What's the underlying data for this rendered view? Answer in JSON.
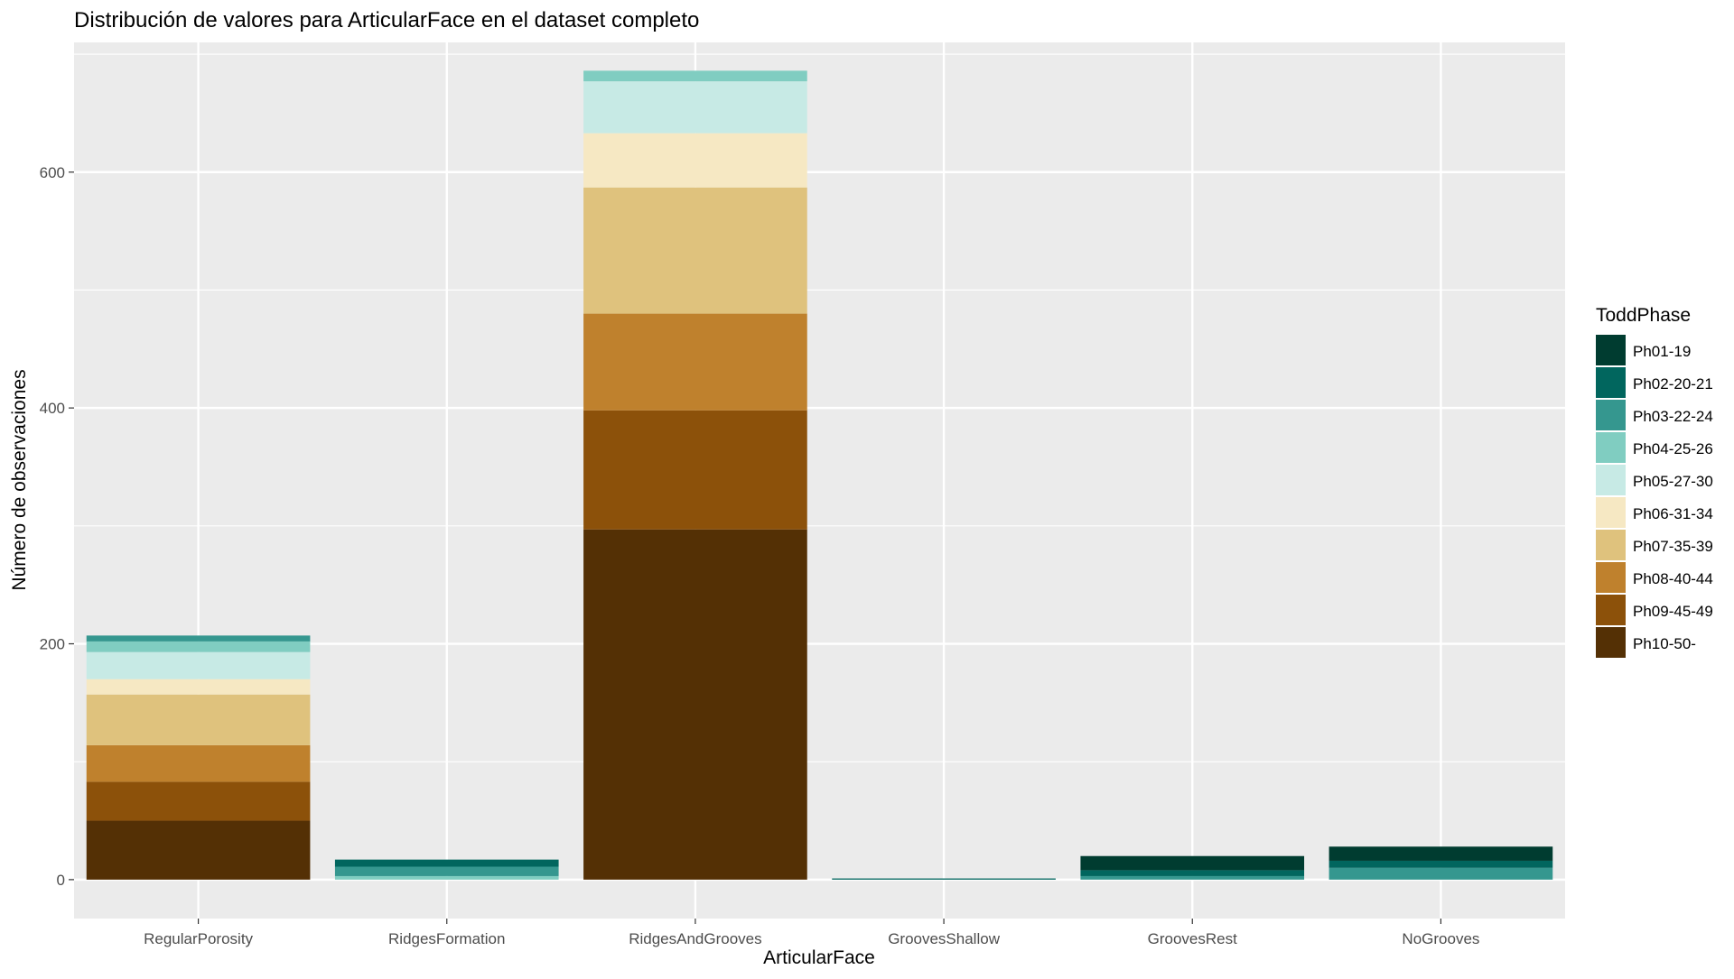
{
  "chart_data": {
    "type": "bar",
    "stacked": true,
    "title": "Distribución de valores para ArticularFace en el dataset completo",
    "xlabel": "ArticularFace",
    "ylabel": "Número de observaciones",
    "categories": [
      "RegularPorosity",
      "RidgesFormation",
      "RidgesAndGrooves",
      "GroovesShallow",
      "GroovesRest",
      "NoGrooves"
    ],
    "ylim": [
      -33,
      710
    ],
    "yticks": [
      0,
      200,
      400,
      600
    ],
    "grid": true,
    "legend": {
      "title": "ToddPhase",
      "position": "right"
    },
    "series": [
      {
        "name": "Ph01-19",
        "color": "#003c30",
        "values": [
          0,
          0,
          0,
          0,
          12,
          12
        ]
      },
      {
        "name": "Ph02-20-21",
        "color": "#01665e",
        "values": [
          0,
          6,
          0,
          1,
          5,
          6
        ]
      },
      {
        "name": "Ph03-22-24",
        "color": "#35978f",
        "values": [
          5,
          8,
          0,
          0,
          3,
          10
        ]
      },
      {
        "name": "Ph04-25-26",
        "color": "#80cdc1",
        "values": [
          9,
          3,
          9,
          0,
          0,
          0
        ]
      },
      {
        "name": "Ph05-27-30",
        "color": "#c7eae5",
        "values": [
          23,
          0,
          44,
          0,
          0,
          0
        ]
      },
      {
        "name": "Ph06-31-34",
        "color": "#f6e8c3",
        "values": [
          13,
          0,
          46,
          0,
          0,
          0
        ]
      },
      {
        "name": "Ph07-35-39",
        "color": "#dfc27d",
        "values": [
          43,
          0,
          107,
          0,
          0,
          0
        ]
      },
      {
        "name": "Ph08-40-44",
        "color": "#bf812d",
        "values": [
          31,
          0,
          82,
          0,
          0,
          0
        ]
      },
      {
        "name": "Ph09-45-49",
        "color": "#8c510a",
        "values": [
          33,
          0,
          101,
          0,
          0,
          0
        ]
      },
      {
        "name": "Ph10-50-",
        "color": "#543005",
        "values": [
          50,
          0,
          297,
          0,
          0,
          0
        ]
      }
    ]
  }
}
